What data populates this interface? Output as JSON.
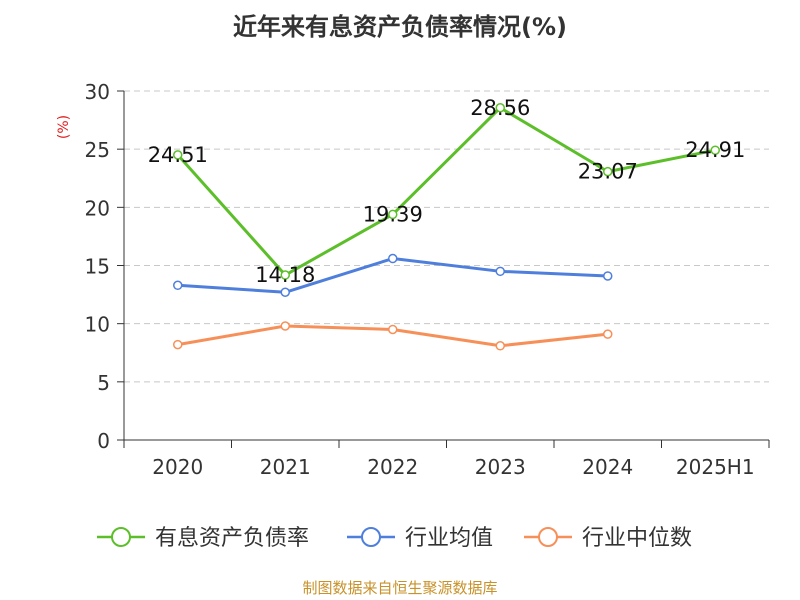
{
  "chart_data": {
    "type": "line",
    "title": "近年来有息资产负债率情况(%)",
    "ylabel": "(%)",
    "xlabel": "",
    "categories": [
      "2020",
      "2021",
      "2022",
      "2023",
      "2024",
      "2025H1"
    ],
    "ylim": [
      0,
      30
    ],
    "yticks": [
      0,
      5,
      10,
      15,
      20,
      25,
      30
    ],
    "grid": true,
    "legend_position": "bottom",
    "series": [
      {
        "name": "有息资产负债率",
        "color": "#5cbf2a",
        "values": [
          24.51,
          14.18,
          19.39,
          28.56,
          23.07,
          24.91
        ],
        "labels": [
          "24.51",
          "14.18",
          "19.39",
          "28.56",
          "23.07",
          "24.91"
        ]
      },
      {
        "name": "行业均值",
        "color": "#4f7fdc",
        "values": [
          13.3,
          12.7,
          15.6,
          14.5,
          14.1,
          null
        ]
      },
      {
        "name": "行业中位数",
        "color": "#f79058",
        "values": [
          8.2,
          9.8,
          9.5,
          8.1,
          9.1,
          null
        ]
      }
    ],
    "source": "制图数据来自恒生聚源数据库"
  }
}
